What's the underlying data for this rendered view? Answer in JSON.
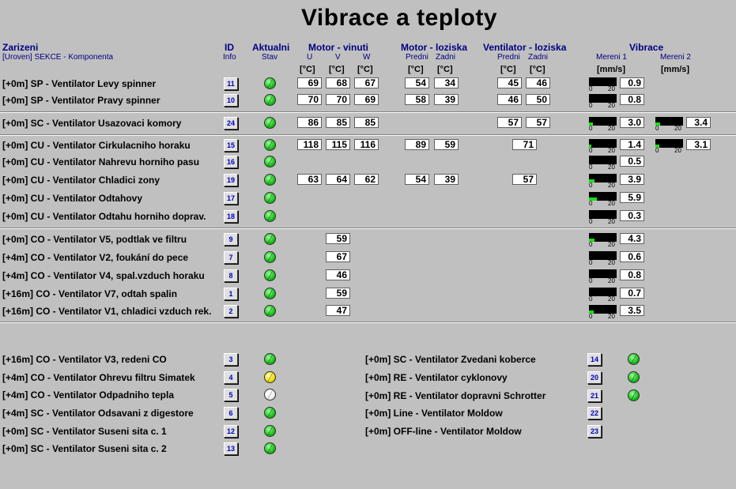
{
  "title": "Vibrace a teploty",
  "headers": {
    "zarizeni": "Zarizeni",
    "zarizeni_sub": "[Uroven] SEKCE - Komponenta",
    "id": "ID",
    "id_sub": "Info",
    "aktualni": "Aktualni",
    "aktualni_sub": "Stav",
    "motor_vinuti": "Motor - vinuti",
    "motor_loziska": "Motor - loziska",
    "ventilator_loziska": "Ventilator - loziska",
    "vibrace": "Vibrace",
    "u": "U",
    "v": "V",
    "w": "W",
    "predni": "Predni",
    "zadni": "Zadni",
    "mereni1": "Mereni 1",
    "mereni2": "Mereni 2",
    "deg": "[°C]",
    "mms": "[mm/s]"
  },
  "scale_min": "0",
  "scale_max": "20",
  "rows": [
    {
      "name": "[+0m] SP - Ventilator Levy spinner",
      "id": "11",
      "led": "green",
      "u": "69",
      "v": "68",
      "w": "67",
      "mp": "54",
      "mz": "34",
      "vp": "45",
      "vz": "46",
      "v1": "0.9",
      "v1f": 0.0
    },
    {
      "name": "[+0m] SP - Ventilator Pravy spinner",
      "id": "10",
      "led": "green",
      "u": "70",
      "v": "70",
      "w": "69",
      "mp": "58",
      "mz": "39",
      "vp": "46",
      "vz": "50",
      "v1": "0.8",
      "v1f": 0.0
    },
    {
      "name": "[+0m] SC - Ventilator Usazovaci komory",
      "id": "24",
      "led": "green",
      "u": "86",
      "v": "85",
      "w": "85",
      "vp": "57",
      "vz": "57",
      "v1": "3.0",
      "v1f": 0.15,
      "v2": "3.4",
      "v2f": 0.17
    },
    {
      "name": "[+0m] CU - Ventilator Cirkulacniho horaku",
      "id": "15",
      "led": "green",
      "u": "118",
      "v": "115",
      "w": "116",
      "mp": "89",
      "mz": "59",
      "vc": "71",
      "v1": "1.4",
      "v1f": 0.07,
      "v2": "3.1",
      "v2f": 0.15
    },
    {
      "name": "[+0m] CU - Ventilator Nahrevu horniho pasu",
      "id": "16",
      "led": "green",
      "v1": "0.5",
      "v1f": 0.0
    },
    {
      "name": "[+0m] CU - Ventilator Chladici zony",
      "id": "19",
      "led": "green",
      "u": "63",
      "v": "64",
      "w": "62",
      "mp": "54",
      "mz": "39",
      "vc": "57",
      "v1": "3.9",
      "v1f": 0.19
    },
    {
      "name": "[+0m] CU - Ventilator Odtahovy",
      "id": "17",
      "led": "green",
      "v1": "5.9",
      "v1f": 0.29
    },
    {
      "name": "[+0m] CU - Ventilator Odtahu horniho doprav.",
      "id": "18",
      "led": "green",
      "v1": "0.3",
      "v1f": 0.0
    },
    {
      "name": "[+0m] CO - Ventilator V5, podtlak ve filtru",
      "id": "9",
      "led": "green",
      "v": "59",
      "v1": "4.3",
      "v1f": 0.21
    },
    {
      "name": "[+4m] CO - Ventilator V2, foukání do pece",
      "id": "7",
      "led": "green",
      "v": "67",
      "v1": "0.6",
      "v1f": 0.0
    },
    {
      "name": "[+4m] CO - Ventilator V4, spal.vzduch horaku",
      "id": "8",
      "led": "green",
      "v": "46",
      "v1": "0.8",
      "v1f": 0.0
    },
    {
      "name": "[+16m] CO - Ventilator V7, odtah spalin",
      "id": "1",
      "led": "green",
      "v": "59",
      "v1": "0.7",
      "v1f": 0.0
    },
    {
      "name": "[+16m] CO - Ventilator V1, chladici vzduch rek.",
      "id": "2",
      "led": "green",
      "v": "47",
      "v1": "3.5",
      "v1f": 0.17
    }
  ],
  "bottom_left": [
    {
      "name": "[+16m] CO - Ventilator V3, redeni CO",
      "id": "3",
      "led": "green"
    },
    {
      "name": "[+4m] CO - Ventilator Ohrevu filtru Simatek",
      "id": "4",
      "led": "yellow"
    },
    {
      "name": "[+4m] CO - Ventilator Odpadniho tepla",
      "id": "5",
      "led": "white"
    },
    {
      "name": "[+4m] SC - Ventilator Odsavani z digestore",
      "id": "6",
      "led": "green"
    },
    {
      "name": "[+0m] SC - Ventilator Suseni sita c. 1",
      "id": "12",
      "led": "green"
    },
    {
      "name": "[+0m] SC - Ventilator Suseni sita c. 2",
      "id": "13",
      "led": "green"
    }
  ],
  "bottom_right": [
    {
      "name": "[+0m] SC - Ventilator Zvedani koberce",
      "id": "14",
      "led": "green"
    },
    {
      "name": "[+0m] RE - Ventilator cyklonovy",
      "id": "20",
      "led": "green"
    },
    {
      "name": "[+0m] RE - Ventilator dopravni Schrotter",
      "id": "21",
      "led": "green"
    },
    {
      "name": "[+0m] Line - Ventilator Moldow",
      "id": "22"
    },
    {
      "name": "[+0m] OFF-line - Ventilator Moldow",
      "id": "23"
    }
  ]
}
